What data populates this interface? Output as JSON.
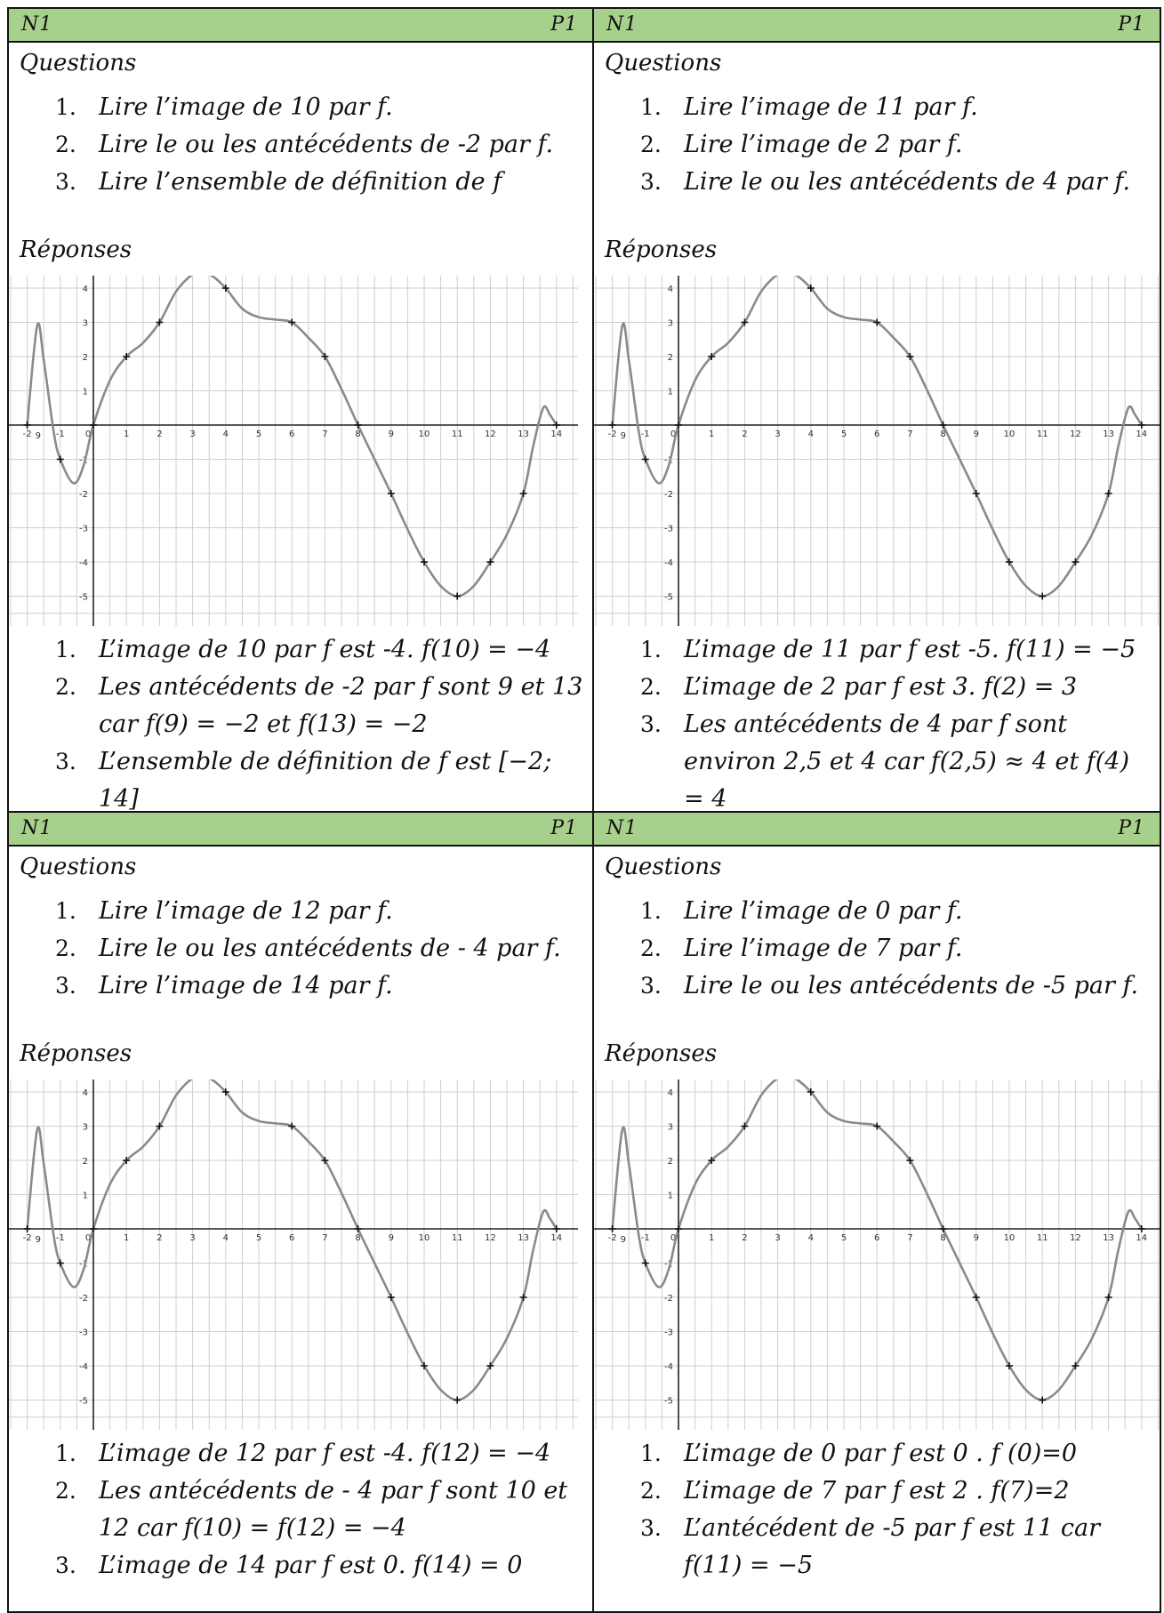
{
  "cards": [
    {
      "header_left": "N1",
      "header_right": "P1",
      "questions_title": "Questions",
      "questions": [
        "Lire l’image de 10 par f.",
        "Lire le ou les antécédents de -2 par f.",
        "Lire l’ensemble de définition de f"
      ],
      "answers_title": "Réponses",
      "answers": [
        "L’image de 10 par f est -4. f(10) = −4",
        "Les antécédents de -2 par f sont 9 et 13 car f(9) = −2 et f(13) = −2",
        "L’ensemble de définition de f est [−2; 14]"
      ]
    },
    {
      "header_left": "N1",
      "header_right": "P1",
      "questions_title": "Questions",
      "questions": [
        "Lire l’image de 11 par f.",
        "Lire l’image de 2 par f.",
        "Lire le ou les antécédents de 4 par f."
      ],
      "answers_title": "Réponses",
      "answers": [
        "L’image de 11 par f est -5. f(11) = −5",
        "L’image de 2 par f est 3. f(2) = 3",
        "Les antécédents de 4 par f sont environ 2,5 et 4 car f(2,5) ≈ 4 et f(4) = 4"
      ]
    },
    {
      "header_left": "N1",
      "header_right": "P1",
      "questions_title": "Questions",
      "questions": [
        "Lire l’image de 12 par f.",
        "Lire le ou les antécédents de - 4 par f.",
        "Lire l’image de 14 par f."
      ],
      "answers_title": "Réponses",
      "answers": [
        "L’image de 12 par f est -4. f(12) = −4",
        "Les antécédents de - 4 par f sont 10 et 12 car f(10) = f(12) = −4",
        "L’image de 14 par f est 0. f(14) = 0"
      ]
    },
    {
      "header_left": "N1",
      "header_right": "P1",
      "questions_title": "Questions",
      "questions": [
        "Lire l’image de 0 par f.",
        "Lire l’image de 7 par f.",
        "Lire le ou les antécédents de -5 par f."
      ],
      "answers_title": "Réponses",
      "answers": [
        "L’image de 0 par f est 0 . f (0)=0",
        "L’image de 7 par f est 2 . f(7)=2",
        "L’antécédent de -5 par f est 11 car f(11) = −5"
      ]
    }
  ],
  "chart_data": {
    "type": "line",
    "title": "",
    "xlabel": "",
    "ylabel": "",
    "xlim": [
      -2,
      14
    ],
    "ylim": [
      -5,
      4
    ],
    "grid": true,
    "x_ticks": [
      "-2",
      "-1",
      "0",
      "1",
      "2",
      "3",
      "4",
      "5",
      "6",
      "7",
      "8",
      "9",
      "10",
      "11",
      "12",
      "13",
      "14"
    ],
    "y_ticks": [
      "4",
      "3",
      "2",
      "1",
      "-1",
      "-2",
      "-3",
      "-4",
      "-5"
    ],
    "curve": {
      "x": [
        -2,
        -1.7,
        -1.5,
        -1.2,
        -1,
        -0.6,
        -0.3,
        0,
        0.5,
        1,
        1.5,
        2,
        2.5,
        3,
        3.3,
        3.6,
        4,
        4.5,
        5,
        5.5,
        6,
        6.5,
        7,
        7.5,
        8,
        8.5,
        9,
        9.5,
        10,
        10.5,
        11,
        11.5,
        12,
        12.5,
        13,
        13.3,
        13.6,
        13.8,
        14
      ],
      "y": [
        0,
        2.9,
        1.9,
        -0.2,
        -1,
        -1.7,
        -1.2,
        0,
        1.3,
        2,
        2.4,
        3,
        3.9,
        4.4,
        4.45,
        4.35,
        4,
        3.4,
        3.15,
        3.08,
        3,
        2.55,
        2,
        1.05,
        0,
        -1.0,
        -2,
        -3.05,
        -4,
        -4.7,
        -5,
        -4.7,
        -4,
        -3.2,
        -2,
        -0.6,
        0.5,
        0.3,
        0
      ]
    },
    "marked_points": {
      "x": [
        -2,
        -1,
        0,
        1,
        2,
        4,
        6,
        7,
        8,
        9,
        10,
        11,
        12,
        13,
        14
      ],
      "y": [
        0,
        -1,
        0,
        2,
        3,
        4,
        3,
        2,
        0,
        -2,
        -4,
        -5,
        -4,
        -2,
        0
      ]
    },
    "origin_label": "9"
  }
}
